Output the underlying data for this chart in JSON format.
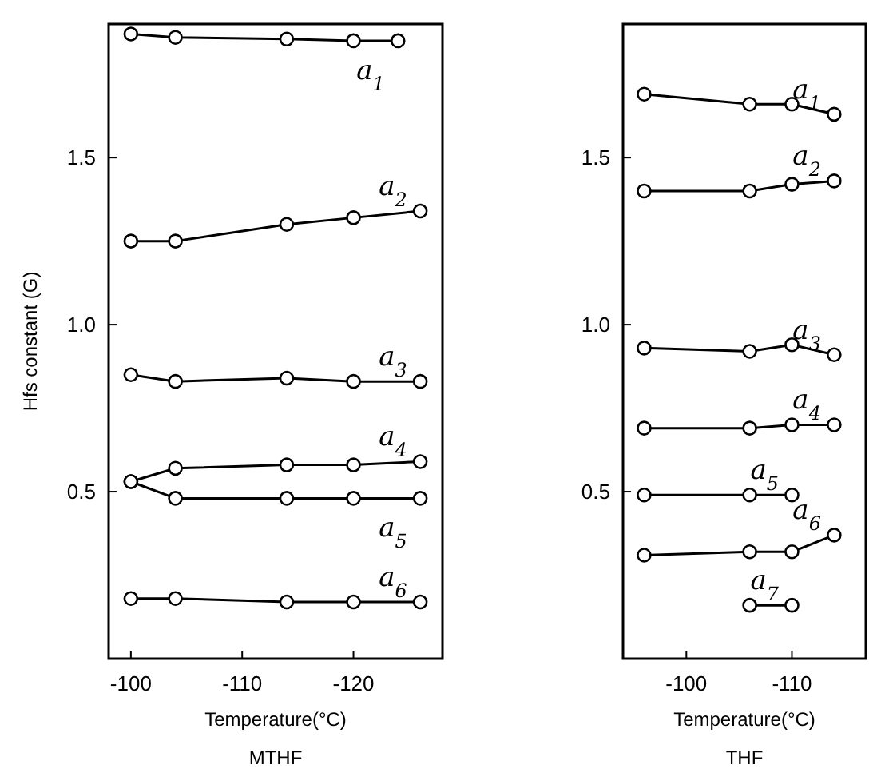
{
  "chart_data": [
    {
      "type": "line",
      "title": "MTHF",
      "xlabel": "Temperature(°C)",
      "ylabel": "Hfs constant (G)",
      "marker": "circle",
      "line_style": "solid",
      "grid": false,
      "xlim": [
        -98,
        -128
      ],
      "xticks": [
        -100,
        -110,
        -120
      ],
      "ylim": [
        0,
        1.9
      ],
      "yticks": [
        {
          "value": 0.5,
          "label": "0.5"
        },
        {
          "value": 1,
          "label": "1.0"
        },
        {
          "value": 1.5,
          "label": "1.5"
        }
      ],
      "x": [
        -100,
        -104,
        -114,
        -120,
        -126
      ],
      "series": [
        {
          "name": "a$_{1}$",
          "color": "#000000",
          "x": [
            -100,
            -104,
            -114,
            -120,
            -124
          ],
          "values": [
            1.87,
            1.86,
            1.855,
            1.85,
            1.85
          ]
        },
        {
          "name": "a$_{2}$",
          "color": "#000000",
          "values": [
            1.25,
            1.25,
            1.3,
            1.32,
            1.34
          ]
        },
        {
          "name": "a$_{3}$",
          "color": "#000000",
          "values": [
            0.85,
            0.83,
            0.84,
            0.83,
            0.83
          ]
        },
        {
          "name": "a$_{4}$",
          "color": "#000000",
          "values": [
            0.53,
            0.57,
            0.58,
            0.58,
            0.59
          ]
        },
        {
          "name": "a$_{5}$",
          "color": "#000000",
          "values": [
            0.53,
            0.48,
            0.48,
            0.48,
            0.48
          ]
        },
        {
          "name": "a$_{6}$",
          "color": "#000000",
          "values": [
            0.18,
            0.18,
            0.17,
            0.17,
            0.17
          ]
        }
      ]
    },
    {
      "type": "line",
      "title": "THF",
      "xlabel": "Temperature(°C)",
      "marker": "circle",
      "line_style": "solid",
      "grid": false,
      "xlim": [
        -94,
        -117
      ],
      "xticks": [
        -100,
        -110
      ],
      "ylim": [
        0,
        1.9
      ],
      "yticks": [
        {
          "value": 0.5,
          "label": "0.5"
        },
        {
          "value": 1,
          "label": "1.0"
        },
        {
          "value": 1.5,
          "label": "1.5"
        }
      ],
      "x": [
        -96,
        -106,
        -110,
        -114
      ],
      "series": [
        {
          "name": "a$_{1}$",
          "color": "#000000",
          "values": [
            1.69,
            1.66,
            1.66,
            1.63
          ]
        },
        {
          "name": "a$_{2}$",
          "color": "#000000",
          "values": [
            1.4,
            1.4,
            1.42,
            1.43
          ]
        },
        {
          "name": "a$_{3}$",
          "color": "#000000",
          "values": [
            0.93,
            0.92,
            0.94,
            0.91
          ]
        },
        {
          "name": "a$_{4}$",
          "color": "#000000",
          "values": [
            0.69,
            0.69,
            0.7,
            0.7
          ]
        },
        {
          "name": "a$_{5}$",
          "color": "#000000",
          "x": [
            -96,
            -106,
            -110
          ],
          "values": [
            0.49,
            0.49,
            0.49
          ]
        },
        {
          "name": "a$_{6}$",
          "color": "#000000",
          "values": [
            0.31,
            0.32,
            0.32,
            0.37
          ]
        },
        {
          "name": "a$_{7}$",
          "color": "#000000",
          "x": [
            -106,
            -110
          ],
          "values": [
            0.16,
            0.16
          ]
        }
      ]
    }
  ]
}
